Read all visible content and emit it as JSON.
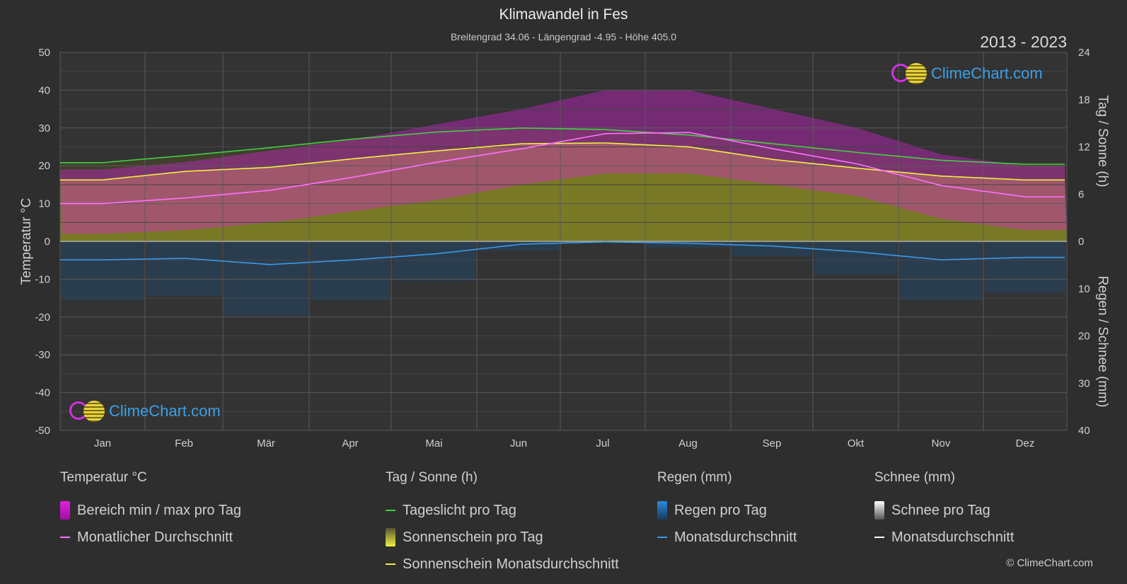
{
  "header": {
    "title": "Klimawandel in Fes",
    "subtitle": "Breitengrad 34.06 - Längengrad -4.95 - Höhe 405.0",
    "years": "2013 - 2023"
  },
  "logo": {
    "text": "ClimeChart.com"
  },
  "copyright": "© ClimeChart.com",
  "legend": {
    "temperature": {
      "title": "Temperatur °C",
      "items": [
        "Bereich min / max pro Tag",
        "Monatlicher Durchschnitt"
      ]
    },
    "sun": {
      "title": "Tag / Sonne (h)",
      "items": [
        "Tageslicht pro Tag",
        "Sonnenschein pro Tag",
        "Sonnenschein Monatsdurchschnitt"
      ]
    },
    "rain": {
      "title": "Regen (mm)",
      "items": [
        "Regen pro Tag",
        "Monatsdurchschnitt"
      ]
    },
    "snow": {
      "title": "Schnee (mm)",
      "items": [
        "Schnee pro Tag",
        "Monatsdurchschnitt"
      ]
    }
  },
  "colors": {
    "background": "#2e2e2e",
    "temp_range": "#e020e0",
    "temp_avg": "#ff70ff",
    "daylight": "#40d040",
    "sunshine": "#b8b830",
    "sunshine_avg": "#f0f040",
    "rain": "#2a8ae0",
    "rain_avg": "#3a9ae8",
    "snow": "#ffffff",
    "logo_text": "#3aa0e8"
  },
  "chart_data": {
    "type": "area",
    "categories": [
      "Jan",
      "Feb",
      "Mär",
      "Apr",
      "Mai",
      "Jun",
      "Jul",
      "Aug",
      "Sep",
      "Okt",
      "Nov",
      "Dez"
    ],
    "left_axis": {
      "label": "Temperatur °C",
      "ticks": [
        50,
        40,
        30,
        20,
        10,
        0,
        -10,
        -20,
        -30,
        -40,
        -50
      ],
      "range": [
        -50,
        50
      ]
    },
    "right_axis_top": {
      "label": "Tag / Sonne (h)",
      "ticks": [
        24,
        18,
        12,
        6,
        0
      ],
      "range": [
        0,
        24
      ]
    },
    "right_axis_bottom": {
      "label": "Regen / Schnee (mm)",
      "ticks": [
        0,
        10,
        20,
        30,
        40
      ],
      "range": [
        0,
        40
      ]
    },
    "grid": true,
    "series": [
      {
        "name": "Monatlicher Durchschnitt",
        "axis": "temperature",
        "values": [
          10.0,
          11.5,
          13.5,
          17.0,
          21.0,
          24.5,
          28.5,
          28.8,
          24.5,
          20.5,
          14.8,
          11.8
        ]
      },
      {
        "name": "Bereich min / max pro Tag (max)",
        "axis": "temperature",
        "values": [
          19,
          21,
          24,
          27,
          31,
          35,
          40,
          40,
          35,
          30,
          23,
          20
        ]
      },
      {
        "name": "Bereich min / max pro Tag (min)",
        "axis": "temperature",
        "values": [
          2,
          3,
          5,
          8,
          11,
          15,
          18,
          18,
          15,
          12,
          6,
          3
        ]
      },
      {
        "name": "Tageslicht pro Tag",
        "axis": "sun",
        "values": [
          10.0,
          10.9,
          11.9,
          13.0,
          13.9,
          14.4,
          14.2,
          13.5,
          12.4,
          11.3,
          10.3,
          9.8
        ]
      },
      {
        "name": "Sonnenschein Monatsdurchschnitt",
        "axis": "sun",
        "values": [
          7.8,
          8.9,
          9.4,
          10.5,
          11.5,
          12.4,
          12.5,
          12.0,
          10.4,
          9.3,
          8.3,
          7.8
        ]
      },
      {
        "name": "Regen Monatsdurchschnitt",
        "axis": "rain",
        "values": [
          3.9,
          3.6,
          4.9,
          3.9,
          2.6,
          0.6,
          0.1,
          0.4,
          1.0,
          2.2,
          3.9,
          3.4
        ]
      }
    ]
  }
}
